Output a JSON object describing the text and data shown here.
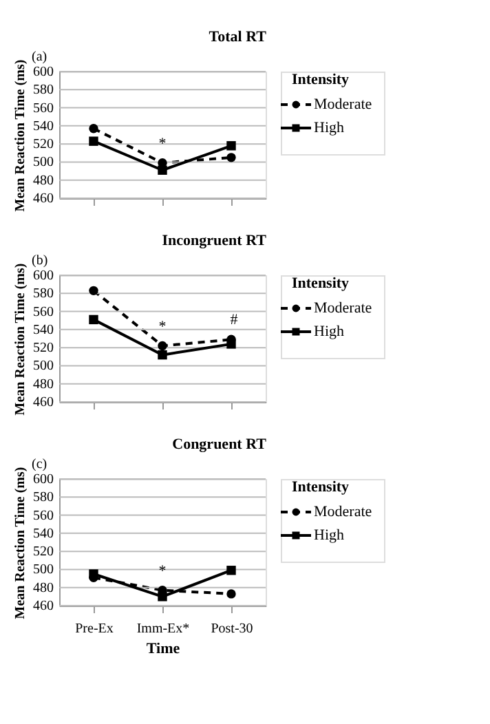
{
  "chart_data": [
    {
      "type": "line",
      "title": "Total RT",
      "annotations": [
        "(a)",
        "*"
      ],
      "categories": [
        null,
        null,
        null
      ],
      "ylabel": "Mean Reaction Time (ms)",
      "legend_title": "Intensity",
      "legend": "right",
      "grid": "y",
      "ylim": [
        460,
        600
      ],
      "yticks": [
        460,
        480,
        500,
        520,
        540,
        560,
        580,
        600
      ],
      "tick_labels": "y",
      "series": [
        {
          "name": "Moderate",
          "color": "#000000",
          "marker": "circle",
          "line_style": "dashed",
          "values": [
            537,
            499,
            505
          ]
        },
        {
          "name": "High",
          "color": "#000000",
          "marker": "square",
          "line_style": "solid",
          "values": [
            523,
            491,
            518
          ]
        }
      ]
    },
    {
      "type": "line",
      "title": "Incongruent RT",
      "annotations": [
        "(b)",
        "*",
        "#"
      ],
      "categories": [
        null,
        null,
        null
      ],
      "ylabel": "Mean Reaction Time (ms)",
      "legend_title": "Intensity",
      "legend": "right",
      "grid": "y",
      "ylim": [
        460,
        600
      ],
      "yticks": [
        460,
        480,
        500,
        520,
        540,
        560,
        580,
        600
      ],
      "tick_labels": "y",
      "series": [
        {
          "name": "Moderate",
          "color": "#000000",
          "marker": "circle",
          "line_style": "dashed",
          "values": [
            583,
            522,
            529
          ]
        },
        {
          "name": "High",
          "color": "#000000",
          "marker": "square",
          "line_style": "solid",
          "values": [
            551,
            512,
            524
          ]
        }
      ]
    },
    {
      "type": "line",
      "title": "Congruent RT",
      "annotations": [
        "(c)",
        "*"
      ],
      "categories": [
        "Pre-Ex",
        "Imm-Ex*",
        "Post-30"
      ],
      "xlabel": "Time",
      "ylabel": "Mean Reaction Time (ms)",
      "legend_title": "Intensity",
      "legend": "right",
      "grid": "y",
      "ylim": [
        460,
        600
      ],
      "yticks": [
        460,
        480,
        500,
        520,
        540,
        560,
        580,
        600
      ],
      "series": [
        {
          "name": "Moderate",
          "color": "#000000",
          "marker": "circle",
          "line_style": "dashed",
          "values": [
            491,
            477,
            473
          ]
        },
        {
          "name": "High",
          "color": "#000000",
          "marker": "square",
          "line_style": "solid",
          "values": [
            495,
            470,
            499
          ]
        }
      ]
    }
  ]
}
